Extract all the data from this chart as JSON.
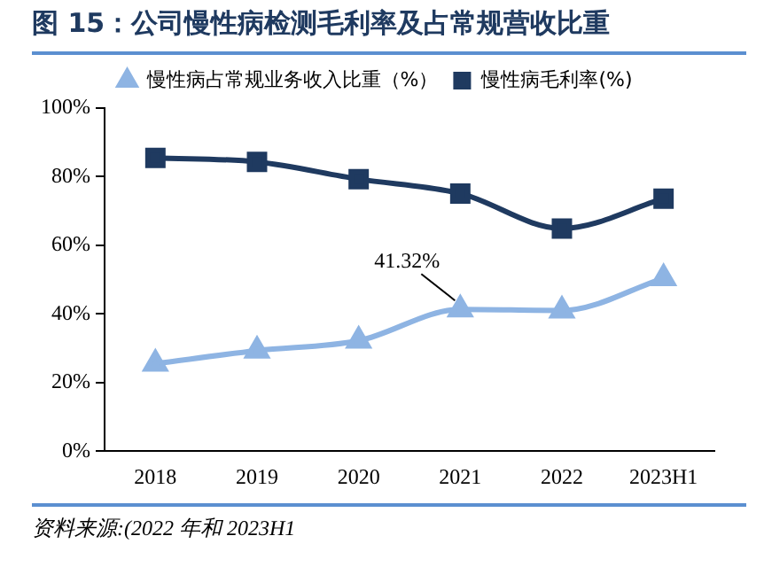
{
  "chart_data": {
    "type": "line",
    "title": "图 15：公司慢性病检测毛利率及占常规营收比重",
    "categories": [
      "2018",
      "2019",
      "2020",
      "2021",
      "2022",
      "2023H1"
    ],
    "series": [
      {
        "name": "慢性病占常规业务收入比重（%）",
        "color": "#8eb4e3",
        "marker": "triangle",
        "values": [
          25.5,
          29.3,
          32.2,
          41.32,
          41.0,
          50.4
        ]
      },
      {
        "name": "慢性病毛利率(%)",
        "color": "#1f3a60",
        "marker": "square",
        "values": [
          85.5,
          84.3,
          79.3,
          75.1,
          64.9,
          73.6
        ]
      }
    ],
    "ylim": [
      0,
      100
    ],
    "yticks": [
      {
        "value": 0,
        "label": "0%"
      },
      {
        "value": 20,
        "label": "20%"
      },
      {
        "value": 40,
        "label": "40%"
      },
      {
        "value": 60,
        "label": "60%"
      },
      {
        "value": 80,
        "label": "80%"
      },
      {
        "value": 100,
        "label": "100%"
      }
    ],
    "grid": false,
    "legend": "top",
    "annotations": [
      {
        "text": "41.32%",
        "x": "2021",
        "y": 41.32
      },
      "资料来源:(2022 年和 2023H1"
    ]
  }
}
